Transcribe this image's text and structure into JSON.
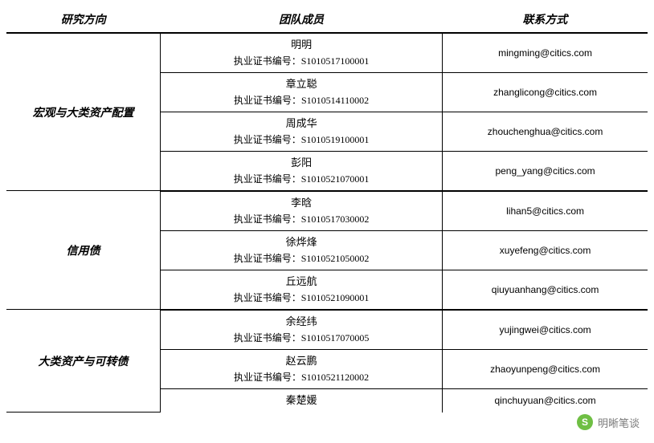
{
  "headers": {
    "direction": "研究方向",
    "member": "团队成员",
    "contact": "联系方式"
  },
  "cert_prefix": "执业证书编号：",
  "col_widths": {
    "direction": "24%",
    "member": "44%",
    "contact": "32%"
  },
  "groups": [
    {
      "direction": "宏观与大类资产配置",
      "members": [
        {
          "name": "明明",
          "cert": "S1010517100001",
          "email": "mingming@citics.com"
        },
        {
          "name": "章立聪",
          "cert": "S1010514110002",
          "email": "zhanglicong@citics.com"
        },
        {
          "name": "周成华",
          "cert": "S1010519100001",
          "email": "zhouchenghua@citics.com"
        },
        {
          "name": "彭阳",
          "cert": "S1010521070001",
          "email": "peng_yang@citics.com"
        }
      ]
    },
    {
      "direction": "信用债",
      "members": [
        {
          "name": "李晗",
          "cert": "S1010517030002",
          "email": "lihan5@citics.com"
        },
        {
          "name": "徐烨烽",
          "cert": "S1010521050002",
          "email": "xuyefeng@citics.com"
        },
        {
          "name": "丘远航",
          "cert": "S1010521090001",
          "email": "qiuyuanhang@citics.com"
        }
      ]
    },
    {
      "direction": "大类资产与可转债",
      "members": [
        {
          "name": "余经纬",
          "cert": "S1010517070005",
          "email": "yujingwei@citics.com"
        },
        {
          "name": "赵云鹏",
          "cert": "S1010521120002",
          "email": "zhaoyunpeng@citics.com"
        },
        {
          "name": "秦楚媛",
          "cert": "",
          "email": "qinchuyuan@citics.com"
        }
      ]
    }
  ],
  "footer": {
    "icon_glyph": "S",
    "text": "明晰笔谈",
    "icon_bg": "#6fbf44",
    "text_color": "#7a7a7a"
  }
}
